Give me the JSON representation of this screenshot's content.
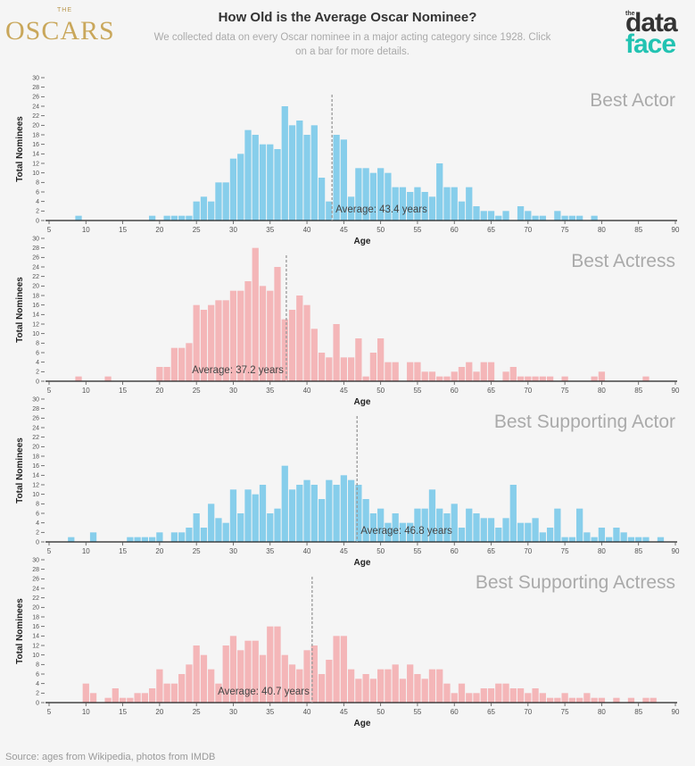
{
  "header": {
    "oscars_logo_small": "THE",
    "oscars_logo_text": "OSCARS",
    "title": "How Old is the Average Oscar Nominee?",
    "subtitle": "We collected data on every Oscar nominee in a major acting category since 1928. Click on a bar for more details.",
    "dataface_logo_small": "the",
    "dataface_logo_top": "data",
    "dataface_logo_bottom": "face"
  },
  "footer": {
    "source": "Source: ages from Wikipedia, photos from IMDB"
  },
  "colors": {
    "actor": "#87ceeb",
    "actress": "#f4b6b8",
    "axis": "#222222",
    "avg_line": "#999999",
    "category_label": "#aaaaaa"
  },
  "chart_data": [
    {
      "type": "bar",
      "title": "Best Actor",
      "color": "#87ceeb",
      "xlabel": "Age",
      "ylabel": "Total Nominees",
      "xlim": [
        5,
        90
      ],
      "ylim": [
        0,
        30
      ],
      "xticks": [
        5,
        10,
        15,
        20,
        25,
        30,
        35,
        40,
        45,
        50,
        55,
        60,
        65,
        70,
        75,
        80,
        85,
        90
      ],
      "yticks": [
        0,
        2,
        4,
        6,
        8,
        10,
        12,
        14,
        16,
        18,
        20,
        22,
        24,
        26,
        28,
        30
      ],
      "average": 43.4,
      "average_label": "Average: 43.4 years",
      "x": [
        9,
        19,
        21,
        22,
        23,
        24,
        25,
        26,
        27,
        28,
        29,
        30,
        31,
        32,
        33,
        34,
        35,
        36,
        37,
        38,
        39,
        40,
        41,
        42,
        43,
        44,
        45,
        46,
        47,
        48,
        49,
        50,
        51,
        52,
        53,
        54,
        55,
        56,
        57,
        58,
        59,
        60,
        61,
        62,
        63,
        64,
        65,
        66,
        67,
        69,
        70,
        71,
        72,
        74,
        75,
        76,
        77,
        79
      ],
      "values": [
        1,
        1,
        1,
        1,
        1,
        1,
        4,
        5,
        4,
        8,
        8,
        13,
        14,
        19,
        18,
        16,
        16,
        15,
        24,
        20,
        21,
        18,
        20,
        9,
        4,
        18,
        17,
        5,
        11,
        11,
        10,
        11,
        10,
        7,
        7,
        6,
        7,
        6,
        5,
        12,
        7,
        7,
        4,
        7,
        3,
        2,
        2,
        1,
        2,
        3,
        2,
        1,
        1,
        2,
        1,
        1,
        1,
        1
      ]
    },
    {
      "type": "bar",
      "title": "Best Actress",
      "color": "#f4b6b8",
      "xlabel": "Age",
      "ylabel": "Total Nominees",
      "xlim": [
        5,
        90
      ],
      "ylim": [
        0,
        30
      ],
      "xticks": [
        5,
        10,
        15,
        20,
        25,
        30,
        35,
        40,
        45,
        50,
        55,
        60,
        65,
        70,
        75,
        80,
        85,
        90
      ],
      "yticks": [
        0,
        2,
        4,
        6,
        8,
        10,
        12,
        14,
        16,
        18,
        20,
        22,
        24,
        26,
        28,
        30
      ],
      "average": 37.2,
      "average_label": "Average: 37.2 years",
      "x": [
        9,
        13,
        20,
        21,
        22,
        23,
        24,
        25,
        26,
        27,
        28,
        29,
        30,
        31,
        32,
        33,
        34,
        35,
        36,
        37,
        38,
        39,
        40,
        41,
        42,
        43,
        44,
        45,
        46,
        47,
        48,
        49,
        50,
        51,
        52,
        54,
        55,
        56,
        57,
        58,
        59,
        60,
        61,
        62,
        63,
        64,
        65,
        67,
        68,
        69,
        70,
        71,
        72,
        73,
        75,
        79,
        80,
        86
      ],
      "values": [
        1,
        1,
        3,
        3,
        7,
        7,
        8,
        16,
        15,
        16,
        17,
        17,
        19,
        19,
        21,
        28,
        20,
        19,
        24,
        13,
        15,
        18,
        16,
        11,
        6,
        5,
        12,
        5,
        5,
        9,
        1,
        6,
        9,
        4,
        4,
        4,
        4,
        2,
        2,
        1,
        1,
        2,
        3,
        4,
        2,
        4,
        4,
        2,
        3,
        1,
        1,
        1,
        1,
        1,
        1,
        1,
        2,
        1
      ]
    },
    {
      "type": "bar",
      "title": "Best Supporting Actor",
      "color": "#87ceeb",
      "xlabel": "Age",
      "ylabel": "Total Nominees",
      "xlim": [
        5,
        90
      ],
      "ylim": [
        0,
        30
      ],
      "xticks": [
        5,
        10,
        15,
        20,
        25,
        30,
        35,
        40,
        45,
        50,
        55,
        60,
        65,
        70,
        75,
        80,
        85,
        90
      ],
      "yticks": [
        0,
        2,
        4,
        6,
        8,
        10,
        12,
        14,
        16,
        18,
        20,
        22,
        24,
        26,
        28,
        30
      ],
      "average": 46.8,
      "average_label": "Average: 46.8 years",
      "x": [
        8,
        11,
        16,
        17,
        18,
        19,
        20,
        22,
        23,
        24,
        25,
        26,
        27,
        28,
        29,
        30,
        31,
        32,
        33,
        34,
        35,
        36,
        37,
        38,
        39,
        40,
        41,
        42,
        43,
        44,
        45,
        46,
        47,
        48,
        49,
        50,
        51,
        52,
        53,
        54,
        55,
        56,
        57,
        58,
        59,
        60,
        61,
        62,
        63,
        64,
        65,
        66,
        67,
        68,
        69,
        70,
        71,
        72,
        73,
        74,
        75,
        76,
        77,
        78,
        79,
        80,
        81,
        82,
        83,
        84,
        85,
        86,
        88
      ],
      "values": [
        1,
        2,
        1,
        1,
        1,
        1,
        2,
        2,
        2,
        3,
        6,
        3,
        8,
        5,
        4,
        11,
        6,
        11,
        10,
        12,
        6,
        7,
        16,
        11,
        12,
        13,
        12,
        9,
        13,
        12,
        14,
        13,
        12,
        9,
        6,
        7,
        4,
        6,
        4,
        4,
        7,
        7,
        11,
        7,
        6,
        8,
        3,
        7,
        6,
        5,
        5,
        3,
        5,
        12,
        4,
        4,
        5,
        2,
        3,
        7,
        1,
        1,
        7,
        2,
        1,
        3,
        1,
        3,
        2,
        1,
        1,
        1,
        1
      ]
    },
    {
      "type": "bar",
      "title": "Best Supporting Actress",
      "color": "#f4b6b8",
      "xlabel": "Age",
      "ylabel": "Total Nominees",
      "xlim": [
        5,
        90
      ],
      "ylim": [
        0,
        30
      ],
      "xticks": [
        5,
        10,
        15,
        20,
        25,
        30,
        35,
        40,
        45,
        50,
        55,
        60,
        65,
        70,
        75,
        80,
        85,
        90
      ],
      "yticks": [
        0,
        2,
        4,
        6,
        8,
        10,
        12,
        14,
        16,
        18,
        20,
        22,
        24,
        26,
        28,
        30
      ],
      "average": 40.7,
      "average_label": "Average: 40.7 years",
      "x": [
        10,
        11,
        13,
        14,
        15,
        16,
        17,
        18,
        19,
        20,
        21,
        22,
        23,
        24,
        25,
        26,
        27,
        28,
        29,
        30,
        31,
        32,
        33,
        34,
        35,
        36,
        37,
        38,
        39,
        40,
        41,
        42,
        43,
        44,
        45,
        46,
        47,
        48,
        49,
        50,
        51,
        52,
        53,
        54,
        55,
        56,
        57,
        58,
        59,
        60,
        61,
        62,
        63,
        64,
        65,
        66,
        67,
        68,
        69,
        70,
        71,
        72,
        73,
        74,
        75,
        76,
        77,
        78,
        79,
        80,
        82,
        84,
        86,
        87
      ],
      "values": [
        4,
        2,
        1,
        3,
        1,
        1,
        2,
        2,
        3,
        7,
        4,
        4,
        6,
        8,
        12,
        10,
        7,
        4,
        12,
        14,
        11,
        13,
        13,
        10,
        16,
        16,
        10,
        8,
        7,
        11,
        12,
        6,
        9,
        14,
        14,
        7,
        5,
        6,
        5,
        7,
        7,
        8,
        5,
        8,
        6,
        5,
        7,
        7,
        4,
        2,
        4,
        2,
        2,
        3,
        3,
        4,
        4,
        3,
        3,
        2,
        3,
        2,
        1,
        1,
        2,
        1,
        1,
        2,
        1,
        1,
        1,
        1,
        1,
        1
      ]
    }
  ]
}
